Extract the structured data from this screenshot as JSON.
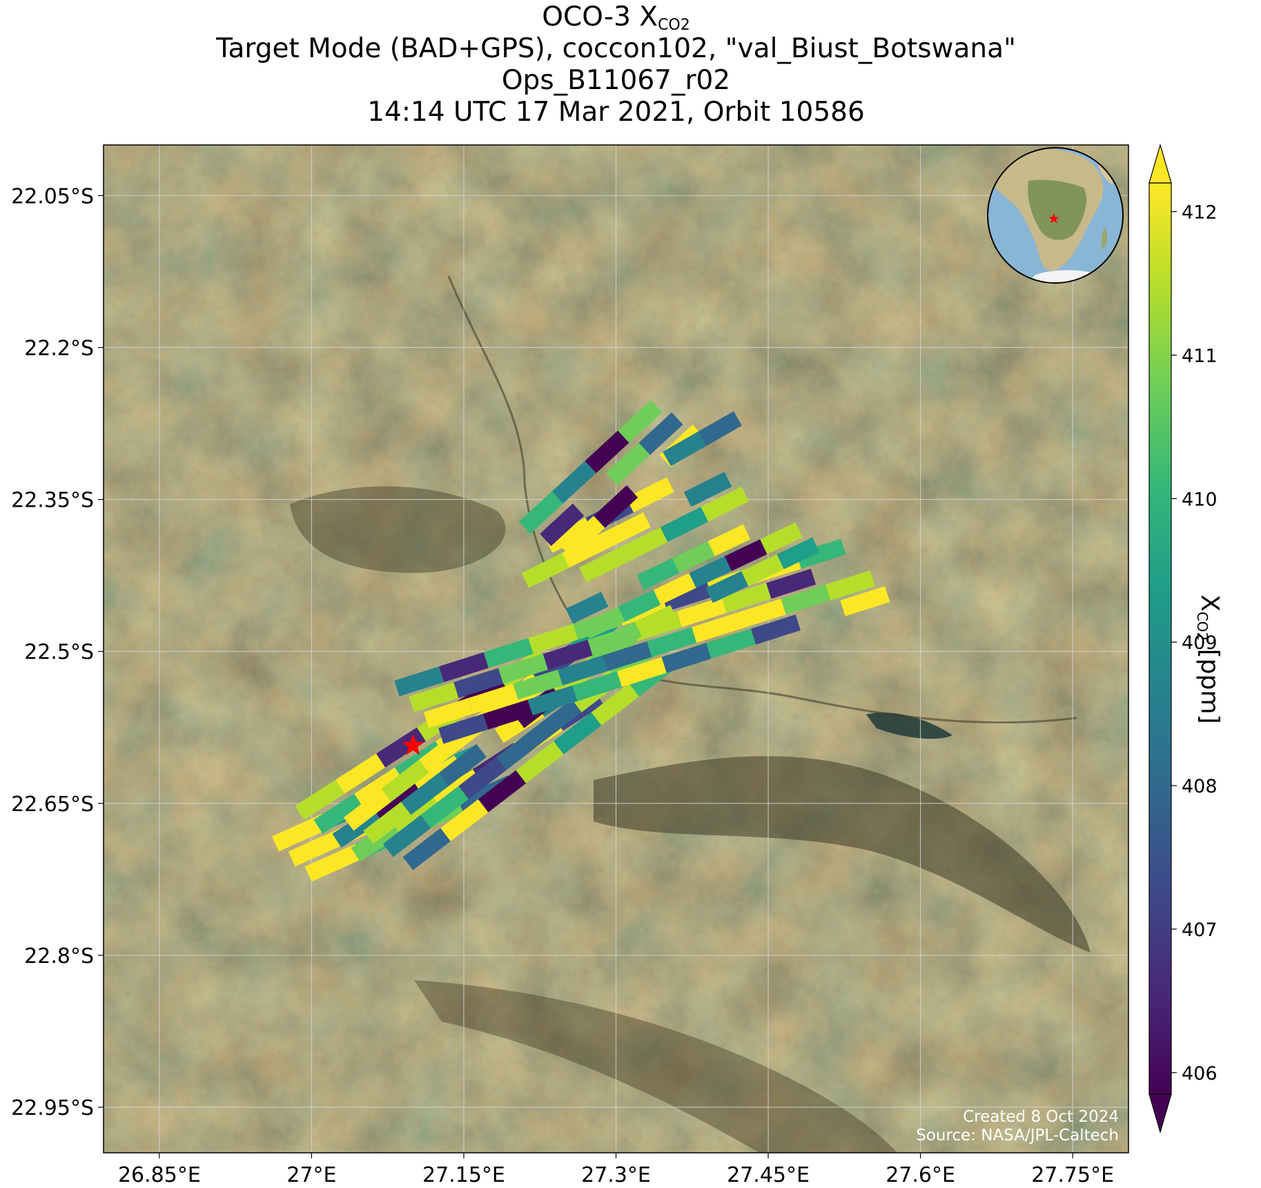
{
  "title": {
    "line1_main": "OCO-3 X",
    "line1_sub": "CO2",
    "line2": "Target Mode (BAD+GPS), coccon102, \"val_Biust_Botswana\"",
    "line3": "Ops_B11067_r02",
    "line4": "14:14 UTC 17 Mar 2021, Orbit 10586"
  },
  "map": {
    "lon_range": [
      26.795,
      27.805
    ],
    "lat_range": [
      -22.995,
      -22.0
    ],
    "lon_ticks": [
      26.85,
      27.0,
      27.15,
      27.3,
      27.45,
      27.6,
      27.75
    ],
    "lon_tick_labels": [
      "26.85°E",
      "27°E",
      "27.15°E",
      "27.3°E",
      "27.45°E",
      "27.6°E",
      "27.75°E"
    ],
    "lat_ticks": [
      -22.05,
      -22.2,
      -22.35,
      -22.5,
      -22.65,
      -22.8,
      -22.95
    ],
    "lat_tick_labels": [
      "22.05°S",
      "22.2°S",
      "22.35°S",
      "22.5°S",
      "22.65°S",
      "22.8°S",
      "22.95°S"
    ],
    "grid": true,
    "target_marker": {
      "lon": 27.1,
      "lat": -22.593,
      "color": "#ff0000"
    },
    "globe_inset": {
      "placement": "top-right",
      "center": "Africa",
      "marker": "star"
    },
    "sounding_swaths": [
      {
        "lon_start": 26.99,
        "lat_start": -22.705,
        "lon_end": 27.19,
        "lat_end": -22.615,
        "cols": 4,
        "rows": 3
      },
      {
        "lon_start": 27.03,
        "lat_start": -22.68,
        "lon_end": 27.27,
        "lat_end": -22.525,
        "cols": 6,
        "rows": 4
      },
      {
        "lon_start": 27.08,
        "lat_start": -22.69,
        "lon_end": 27.34,
        "lat_end": -22.49,
        "cols": 7,
        "rows": 4
      },
      {
        "lon_start": 27.12,
        "lat_start": -22.56,
        "lon_end": 27.56,
        "lat_end": -22.42,
        "cols": 10,
        "rows": 4
      },
      {
        "lon_start": 27.28,
        "lat_start": -22.48,
        "lon_end": 27.49,
        "lat_end": -22.38,
        "cols": 6,
        "rows": 3
      },
      {
        "lon_start": 27.22,
        "lat_start": -22.43,
        "lon_end": 27.42,
        "lat_end": -22.33,
        "cols": 5,
        "rows": 3
      },
      {
        "lon_start": 27.24,
        "lat_start": -22.39,
        "lon_end": 27.37,
        "lat_end": -22.27,
        "cols": 4,
        "rows": 3
      },
      {
        "lon_start": 27.35,
        "lat_start": -22.31,
        "lon_end": 27.42,
        "lat_end": -22.27,
        "cols": 2,
        "rows": 1
      }
    ]
  },
  "colorbar": {
    "min": 406,
    "max": 412,
    "ticks": [
      406,
      407,
      408,
      409,
      410,
      411,
      412
    ],
    "tick_labels": [
      "406",
      "407",
      "408",
      "409",
      "410",
      "411",
      "412"
    ],
    "label_main": "X",
    "label_sub": "CO2",
    "label_unit": " [ppm]",
    "colormap": "viridis",
    "extend": "both"
  },
  "credit": {
    "line1": "Created 8 Oct 2024",
    "line2": "Source: NASA/JPL-Caltech"
  },
  "colors": {
    "land_base": "#7c6b4b",
    "grid": "#d8d8d8",
    "viridis": [
      "#440154",
      "#482878",
      "#3e4989",
      "#31688e",
      "#26828e",
      "#1f9e89",
      "#35b779",
      "#6ece58",
      "#b5de2b",
      "#fde725"
    ]
  }
}
